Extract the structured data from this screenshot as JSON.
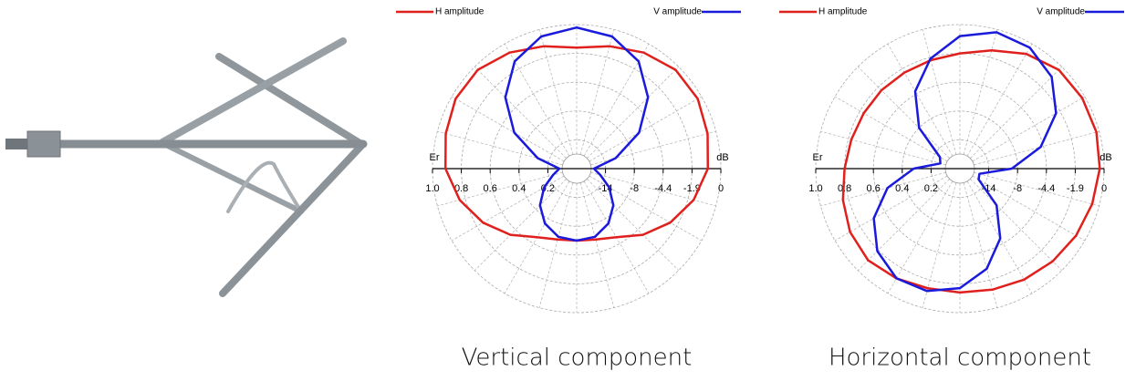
{
  "chart_data": [
    {
      "type": "polar",
      "caption": "Vertical component",
      "r_label": "Er",
      "r2_label": "dB",
      "rlim": [
        0,
        1
      ],
      "rticks": [
        {
          "value": 1,
          "label": "1.0"
        },
        0.8,
        0.6,
        0.4,
        0.2
      ],
      "r2ticks": [
        {
          "value": 0.2,
          "label": "-14"
        },
        {
          "value": 0.4,
          "label": "-8"
        },
        {
          "value": 0.6,
          "label": "-4.4"
        },
        {
          "value": 0.8,
          "label": "-1.9"
        },
        {
          "value": 1,
          "label": "0"
        }
      ],
      "angles": [
        0,
        15,
        30,
        45,
        60,
        75,
        90,
        105,
        120,
        135,
        150,
        165,
        180,
        195,
        210,
        225,
        240,
        255,
        270,
        285,
        300,
        315,
        330,
        345
      ],
      "series": [
        {
          "name": "H amplitude",
          "color": "#e0201c",
          "values": [
            0.84,
            0.88,
            0.93,
            0.97,
            0.97,
            0.94,
            0.91,
            0.84,
            0.75,
            0.65,
            0.55,
            0.51,
            0.5,
            0.51,
            0.55,
            0.65,
            0.75,
            0.84,
            0.91,
            0.94,
            0.97,
            0.97,
            0.93,
            0.88
          ]
        },
        {
          "name": "V amplitude",
          "color": "#1a1adc",
          "values": [
            0.98,
            0.95,
            0.86,
            0.7,
            0.5,
            0.28,
            0.12,
            0.17,
            0.26,
            0.36,
            0.44,
            0.49,
            0.5,
            0.49,
            0.44,
            0.36,
            0.26,
            0.17,
            0.12,
            0.28,
            0.5,
            0.7,
            0.86,
            0.95
          ]
        }
      ]
    },
    {
      "type": "polar",
      "caption": "Horizontal component",
      "r_label": "Er",
      "r2_label": "dB",
      "rlim": [
        0,
        1
      ],
      "rticks": [
        {
          "value": 1,
          "label": "1.0"
        },
        0.8,
        0.6,
        0.4,
        0.2
      ],
      "r2ticks": [
        {
          "value": 0.2,
          "label": "-14"
        },
        {
          "value": 0.4,
          "label": "-8"
        },
        {
          "value": 0.6,
          "label": "-4.4"
        },
        {
          "value": 0.8,
          "label": "-1.9"
        },
        {
          "value": 1,
          "label": "0"
        }
      ],
      "angles": [
        0,
        15,
        30,
        45,
        60,
        75,
        90,
        105,
        120,
        135,
        150,
        165,
        180,
        195,
        210,
        225,
        240,
        255,
        270,
        285,
        300,
        315,
        330,
        345
      ],
      "series": [
        {
          "name": "H amplitude",
          "color": "#e0201c",
          "values": [
            0.8,
            0.85,
            0.92,
            0.97,
            0.98,
            0.98,
            0.97,
            0.95,
            0.93,
            0.91,
            0.89,
            0.87,
            0.86,
            0.86,
            0.88,
            0.9,
            0.88,
            0.84,
            0.8,
            0.78,
            0.77,
            0.77,
            0.77,
            0.78
          ]
        },
        {
          "name": "V amplitude",
          "color": "#1a1adc",
          "values": [
            0.92,
            0.98,
            0.97,
            0.9,
            0.77,
            0.58,
            0.36,
            0.14,
            0.15,
            0.36,
            0.56,
            0.72,
            0.83,
            0.88,
            0.88,
            0.81,
            0.69,
            0.52,
            0.32,
            0.14,
            0.16,
            0.4,
            0.62,
            0.79
          ]
        }
      ]
    }
  ]
}
